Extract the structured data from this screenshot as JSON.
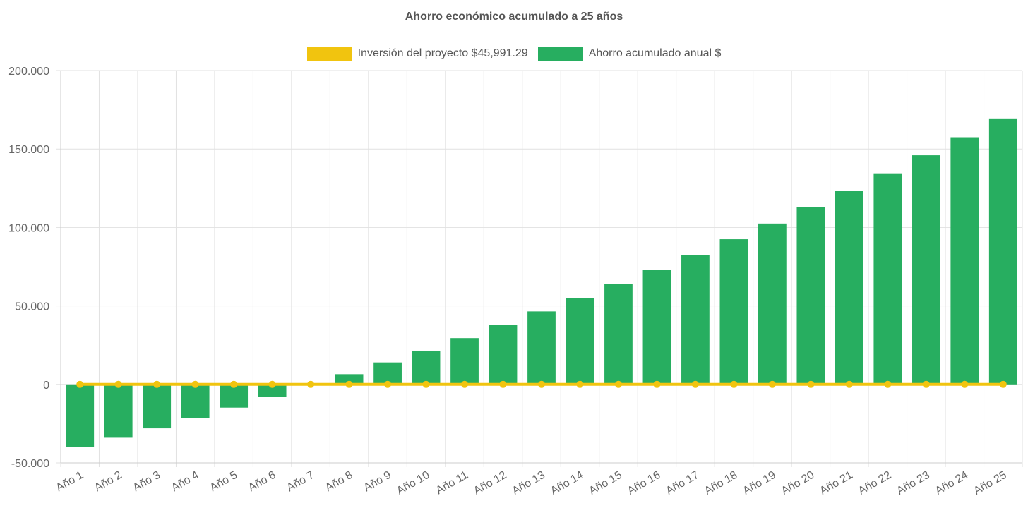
{
  "chart_data": {
    "type": "bar",
    "title": "Ahorro económico acumulado a 25 años",
    "categories": [
      "Año 1",
      "Año 2",
      "Año 3",
      "Año 4",
      "Año 5",
      "Año 6",
      "Año 7",
      "Año 8",
      "Año 9",
      "Año 10",
      "Año 11",
      "Año 12",
      "Año 13",
      "Año 14",
      "Año 15",
      "Año 16",
      "Año 17",
      "Año 18",
      "Año 19",
      "Año 20",
      "Año 21",
      "Año 22",
      "Año 23",
      "Año 24",
      "Año 25"
    ],
    "series": [
      {
        "name": "Inversión del proyecto $45,991.29",
        "type": "line",
        "color": "#f1c40f",
        "values": [
          0,
          0,
          0,
          0,
          0,
          0,
          0,
          0,
          0,
          0,
          0,
          0,
          0,
          0,
          0,
          0,
          0,
          0,
          0,
          0,
          0,
          0,
          0,
          0,
          0
        ]
      },
      {
        "name": "Ahorro acumulado anual $",
        "type": "bar",
        "color": "#27ae60",
        "values": [
          -40000,
          -34000,
          -28000,
          -21500,
          -14800,
          -8000,
          0,
          6500,
          14000,
          21500,
          29500,
          38000,
          46500,
          55000,
          64000,
          73000,
          82500,
          92500,
          102500,
          113000,
          123500,
          134500,
          146000,
          157500,
          169500
        ]
      }
    ],
    "xlabel": "",
    "ylabel": "",
    "ylim": [
      -50000,
      200000
    ],
    "yticks": [
      "-50.000",
      "0",
      "50.000",
      "100.000",
      "150.000",
      "200.000"
    ],
    "ytick_values": [
      -50000,
      0,
      50000,
      100000,
      150000,
      200000
    ],
    "grid": true,
    "legend_position": "top"
  }
}
